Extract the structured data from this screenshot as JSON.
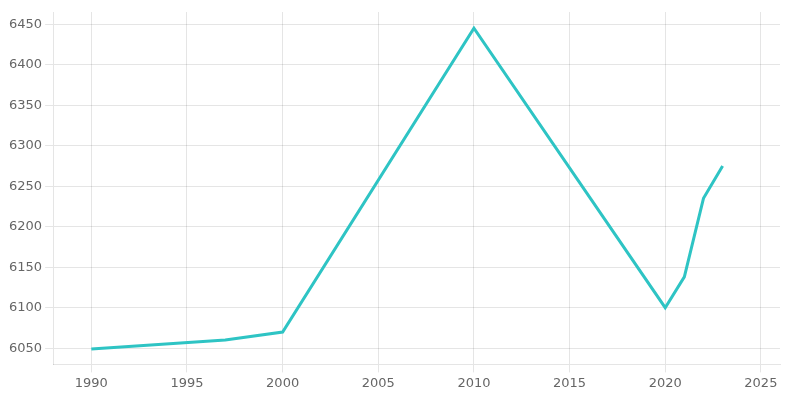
{
  "chart_data": {
    "type": "line",
    "x": [
      1990,
      1997,
      2000,
      2010,
      2020,
      2021,
      2022,
      2023
    ],
    "values": [
      6049,
      6060,
      6070,
      6445,
      6100,
      6138,
      6235,
      6275
    ],
    "color": "#2EC4C4",
    "xlim": [
      1988,
      2026
    ],
    "ylim": [
      6030,
      6465
    ],
    "xticks": [
      1990,
      1995,
      2000,
      2005,
      2010,
      2015,
      2020,
      2025
    ],
    "yticks": [
      6050,
      6100,
      6150,
      6200,
      6250,
      6300,
      6350,
      6400,
      6450
    ],
    "grid": true
  }
}
